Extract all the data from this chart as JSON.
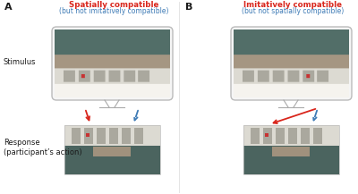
{
  "panel_A_title_line1": "Spatially compatible",
  "panel_A_title_line2": "(but not imitatively compatible)",
  "panel_B_title_line1": "Imitatively compatible",
  "panel_B_title_line2": "(but not spatially compatible)",
  "panel_A_label": "A",
  "panel_B_label": "B",
  "stimulus_label": "Stimulus",
  "response_label": "Response\n(participant’s action)",
  "red_color": "#d9261c",
  "blue_color": "#3d7ab5",
  "title_line1_color": "#d9261c",
  "title_line2_color": "#3d7ab5",
  "bg_color": "#ffffff",
  "label_color": "#1a1a1a",
  "monitor_border": "#bbbbbb",
  "monitor_bg": "#f5f5f5",
  "stand_color": "#aaaaaa",
  "person_teal": [
    82,
    110,
    104
  ],
  "person_bg": [
    200,
    195,
    185
  ],
  "keyboard_light": [
    220,
    218,
    210
  ],
  "keyboard_dark": [
    170,
    168,
    158
  ],
  "resp_person_teal": [
    75,
    100,
    95
  ],
  "figsize": [
    4.0,
    2.17
  ],
  "dpi": 100
}
